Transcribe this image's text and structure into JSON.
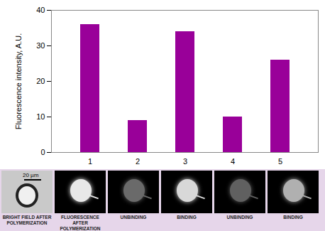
{
  "chart_data": {
    "type": "bar",
    "categories": [
      "1",
      "2",
      "3",
      "4",
      "5"
    ],
    "values": [
      36,
      9,
      34,
      10,
      26
    ],
    "color": "#990099",
    "y_label": "Fluorescence intensity, A.U.",
    "ylim": [
      0,
      40
    ],
    "yticks": [
      0,
      10,
      20,
      30,
      40
    ],
    "grid": false,
    "annotations": {
      "scale_bar": "20 µm",
      "panel_labels": [
        "BRIGHT FIELD AFTER POLYMERIZATION",
        "FLUORESCENCE AFTER POLYMERIZATION",
        "UNBINDING",
        "BINDING",
        "UNBINDING",
        "BINDING"
      ]
    }
  }
}
